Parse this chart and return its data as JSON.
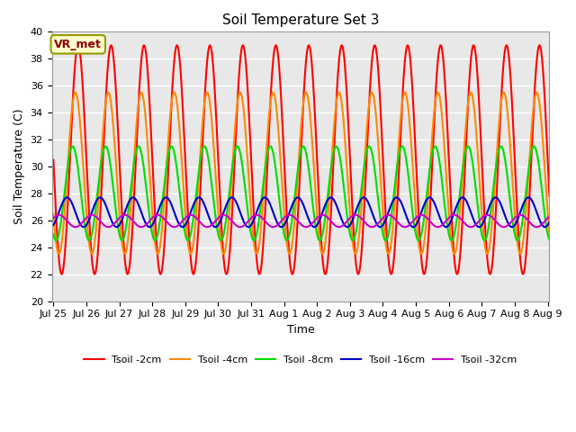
{
  "title": "Soil Temperature Set 3",
  "xlabel": "Time",
  "ylabel": "Soil Temperature (C)",
  "ylim": [
    20,
    40
  ],
  "annotation": "VR_met",
  "bg_color": "#e8e8e8",
  "fig_bg": "#ffffff",
  "grid_color": "#ffffff",
  "lines": {
    "Tsoil -2cm": {
      "color": "#ff0000",
      "amp": 8.5,
      "base": 30.5,
      "phase_hours": 2.0,
      "lw": 1.5
    },
    "Tsoil -4cm": {
      "color": "#ff8800",
      "amp": 6.0,
      "base": 29.5,
      "phase_hours": 4.0,
      "lw": 1.5
    },
    "Tsoil -8cm": {
      "color": "#00dd00",
      "amp": 3.5,
      "base": 28.0,
      "phase_hours": 6.0,
      "lw": 1.5
    },
    "Tsoil -16cm": {
      "color": "#0000cc",
      "amp": 1.1,
      "base": 26.6,
      "phase_hours": 10.0,
      "lw": 1.5
    },
    "Tsoil -32cm": {
      "color": "#cc00cc",
      "amp": 0.45,
      "base": 25.95,
      "phase_hours": 16.0,
      "lw": 1.5
    }
  },
  "xtick_labels": [
    "Jul 25",
    "Jul 26",
    "Jul 27",
    "Jul 28",
    "Jul 29",
    "Jul 30",
    "Jul 31",
    "Aug 1",
    "Aug 2",
    "Aug 3",
    "Aug 4",
    "Aug 5",
    "Aug 6",
    "Aug 7",
    "Aug 8",
    "Aug 9"
  ],
  "xtick_positions": [
    0,
    1,
    2,
    3,
    4,
    5,
    6,
    7,
    8,
    9,
    10,
    11,
    12,
    13,
    14,
    15
  ],
  "peak_hour": 14.0,
  "n_days": 16,
  "pts_per_day": 96
}
